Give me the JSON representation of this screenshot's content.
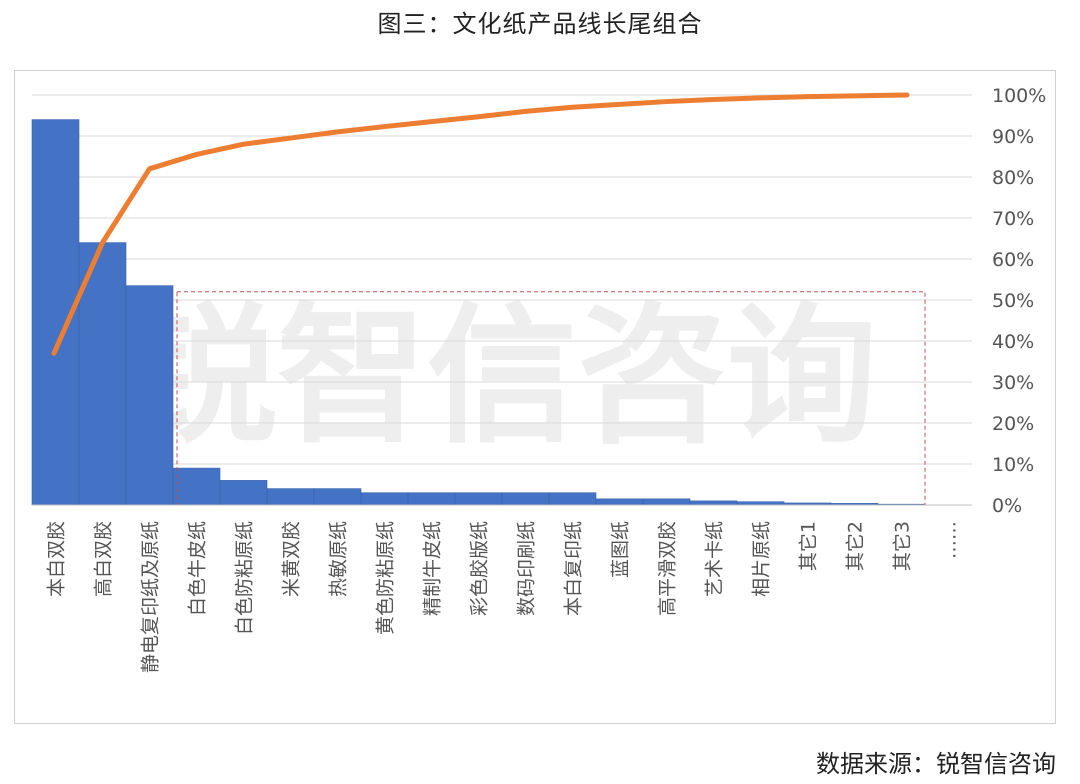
{
  "title": "图三：文化纸产品线长尾组合",
  "source": "数据来源：锐智信咨询",
  "watermark": "锐智信咨询",
  "colors": {
    "bar": "#4472c4",
    "line": "#ed7d31",
    "grid": "#d9d9d9",
    "highlight_box": "#c0504d"
  },
  "chart_data": {
    "type": "bar",
    "categories": [
      "本白双胶",
      "高白双胶",
      "静电复印纸及原纸",
      "白色牛皮纸",
      "白色防粘原纸",
      "米黄双胶",
      "热敏原纸",
      "黄色防粘原纸",
      "精制牛皮纸",
      "彩色胶版纸",
      "数码印刷纸",
      "本白复印纸",
      "蓝图纸",
      "高平滑双胶",
      "艺术卡纸",
      "相片原纸",
      "其它1",
      "其它2",
      "其它3",
      "……"
    ],
    "series": [
      {
        "axis": "left",
        "chart_type": "bar",
        "values": [
          94,
          64,
          53.5,
          9,
          6,
          4,
          4,
          3,
          3,
          3,
          3,
          3,
          1.5,
          1.5,
          1,
          0.8,
          0.5,
          0.4,
          0.2,
          null
        ]
      },
      {
        "axis": "right",
        "chart_type": "line",
        "values": [
          37,
          64,
          82,
          85.5,
          88,
          89.5,
          91,
          92.3,
          93.5,
          94.7,
          96,
          97,
          97.7,
          98.4,
          98.9,
          99.3,
          99.6,
          99.8,
          100,
          null
        ]
      }
    ],
    "right_axis": {
      "ticks": [
        "0%",
        "10%",
        "20%",
        "30%",
        "40%",
        "50%",
        "60%",
        "70%",
        "80%",
        "90%",
        "100%"
      ],
      "ylim": [
        0,
        100
      ]
    },
    "left_axis": {
      "visible": false,
      "ylim": [
        0,
        100
      ]
    },
    "gridlines": true,
    "highlight_range": {
      "from": "白色牛皮纸",
      "to": "其它3",
      "top_value": 52,
      "style": "dashed-rectangle"
    }
  }
}
